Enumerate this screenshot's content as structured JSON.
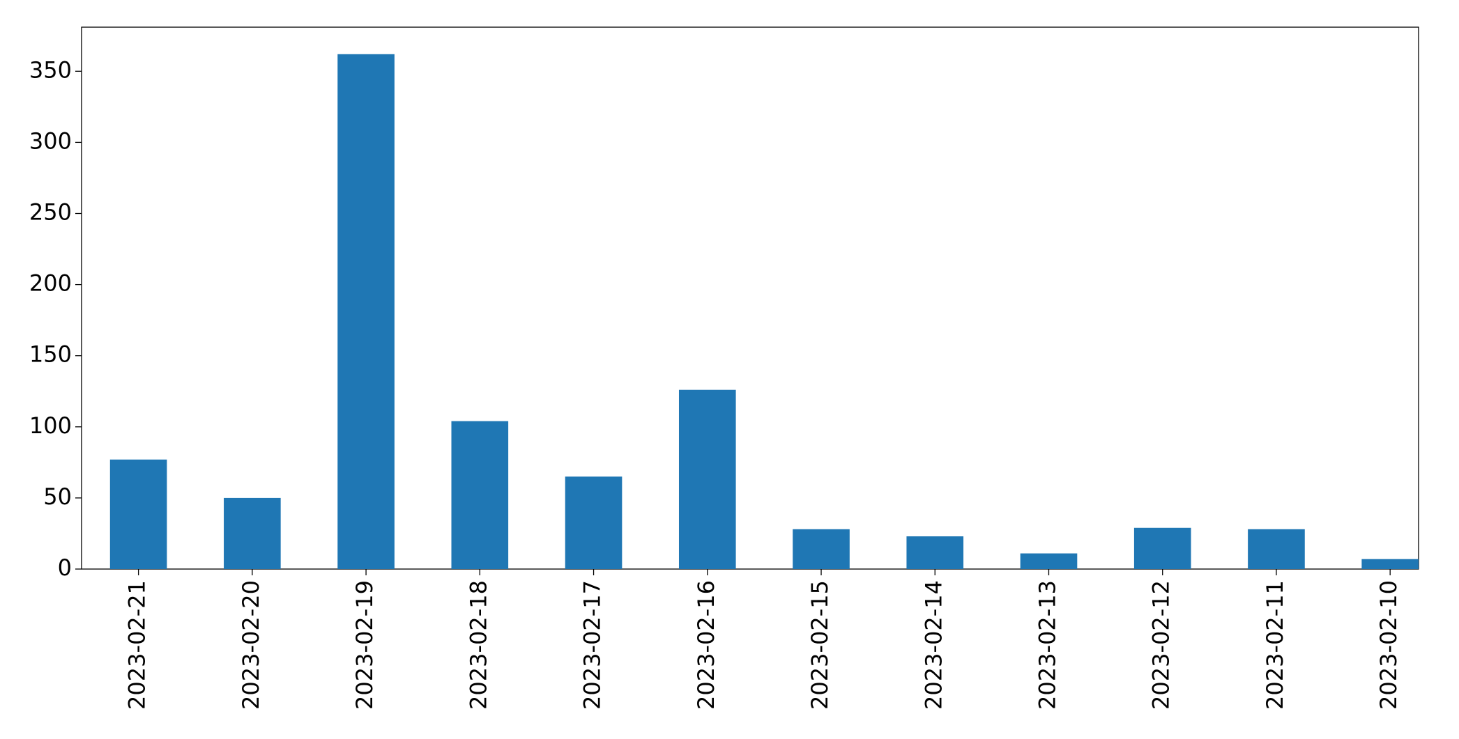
{
  "chart_data": {
    "type": "bar",
    "categories": [
      "2023-02-21",
      "2023-02-20",
      "2023-02-19",
      "2023-02-18",
      "2023-02-17",
      "2023-02-16",
      "2023-02-15",
      "2023-02-14",
      "2023-02-13",
      "2023-02-12",
      "2023-02-11",
      "2023-02-10"
    ],
    "values": [
      77,
      50,
      362,
      104,
      65,
      126,
      28,
      23,
      11,
      29,
      28,
      7
    ],
    "color": "#1f77b4",
    "ylim": [
      0,
      381
    ],
    "yticks": [
      0,
      50,
      100,
      150,
      200,
      250,
      300,
      350
    ],
    "grid": false
  }
}
